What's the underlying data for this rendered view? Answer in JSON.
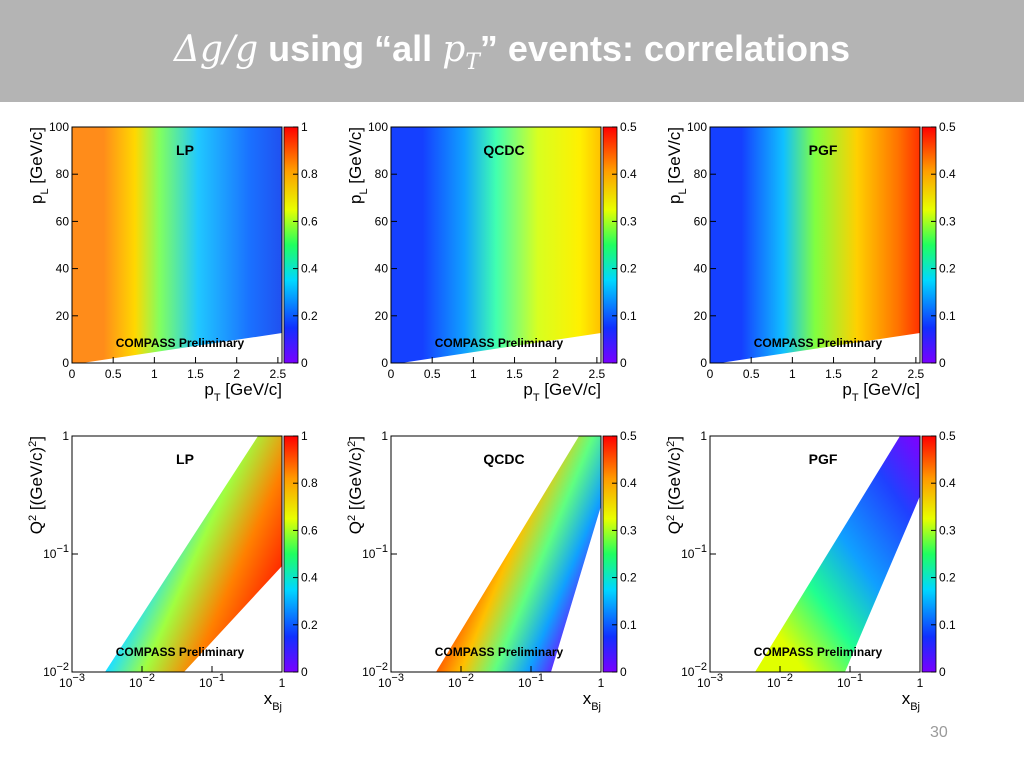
{
  "header": {
    "title": [
      "Δ𝑔/𝑔",
      " using “all ",
      "𝑝",
      "𝑇",
      "” events: correlations"
    ]
  },
  "page_number": "30",
  "plots": [
    {
      "label": "LP",
      "annotation": "COMPASS Preliminary",
      "x_label": [
        "p",
        "T",
        " [GeV/c]"
      ],
      "y_label": [
        "p",
        "L",
        " [GeV/c]"
      ],
      "xticks": [
        "0",
        "0.5",
        "1",
        "1.5",
        "2",
        "2.5"
      ],
      "yticks": [
        "0",
        "20",
        "40",
        "60",
        "80",
        "100"
      ],
      "colorbar_ticks": [
        "0",
        "0.2",
        "0.4",
        "0.6",
        "0.8",
        "1"
      ]
    },
    {
      "label": "QCDC",
      "annotation": "COMPASS Preliminary",
      "x_label": [
        "p",
        "T",
        " [GeV/c]"
      ],
      "y_label": [
        "p",
        "L",
        " [GeV/c]"
      ],
      "xticks": [
        "0",
        "0.5",
        "1",
        "1.5",
        "2",
        "2.5"
      ],
      "yticks": [
        "0",
        "20",
        "40",
        "60",
        "80",
        "100"
      ],
      "colorbar_ticks": [
        "0",
        "0.1",
        "0.2",
        "0.3",
        "0.4",
        "0.5"
      ]
    },
    {
      "label": "PGF",
      "annotation": "COMPASS Preliminary",
      "x_label": [
        "p",
        "T",
        " [GeV/c]"
      ],
      "y_label": [
        "p",
        "L",
        " [GeV/c]"
      ],
      "xticks": [
        "0",
        "0.5",
        "1",
        "1.5",
        "2",
        "2.5"
      ],
      "yticks": [
        "0",
        "20",
        "40",
        "60",
        "80",
        "100"
      ],
      "colorbar_ticks": [
        "0",
        "0.1",
        "0.2",
        "0.3",
        "0.4",
        "0.5"
      ]
    },
    {
      "label": "LP",
      "annotation": "COMPASS Preliminary",
      "x_label": [
        "x",
        "Bj"
      ],
      "y_label": [
        "Q",
        "2",
        " [(GeV/c)",
        "2",
        "]"
      ],
      "xticks": [
        [
          "10",
          "−3"
        ],
        [
          "10",
          "−2"
        ],
        [
          "10",
          "−1"
        ],
        [
          "1"
        ]
      ],
      "yticks": [
        [
          "10",
          "−2"
        ],
        [
          "10",
          "−1"
        ],
        [
          "1"
        ]
      ],
      "colorbar_ticks": [
        "0",
        "0.2",
        "0.4",
        "0.6",
        "0.8",
        "1"
      ]
    },
    {
      "label": "QCDC",
      "annotation": "COMPASS Preliminary",
      "x_label": [
        "x",
        "Bj"
      ],
      "y_label": [
        "Q",
        "2",
        " [(GeV/c)",
        "2",
        "]"
      ],
      "xticks": [
        [
          "10",
          "−3"
        ],
        [
          "10",
          "−2"
        ],
        [
          "10",
          "−1"
        ],
        [
          "1"
        ]
      ],
      "yticks": [
        [
          "10",
          "−2"
        ],
        [
          "10",
          "−1"
        ],
        [
          "1"
        ]
      ],
      "colorbar_ticks": [
        "0",
        "0.1",
        "0.2",
        "0.3",
        "0.4",
        "0.5"
      ]
    },
    {
      "label": "PGF",
      "annotation": "COMPASS Preliminary",
      "x_label": [
        "x",
        "Bj"
      ],
      "y_label": [
        "Q",
        "2",
        " [(GeV/c)",
        "2",
        "]"
      ],
      "xticks": [
        [
          "10",
          "−3"
        ],
        [
          "10",
          "−2"
        ],
        [
          "10",
          "−1"
        ],
        [
          "1"
        ]
      ],
      "yticks": [
        [
          "10",
          "−2"
        ],
        [
          "10",
          "−1"
        ],
        [
          "1"
        ]
      ],
      "colorbar_ticks": [
        "0",
        "0.1",
        "0.2",
        "0.3",
        "0.4",
        "0.5"
      ]
    }
  ]
}
